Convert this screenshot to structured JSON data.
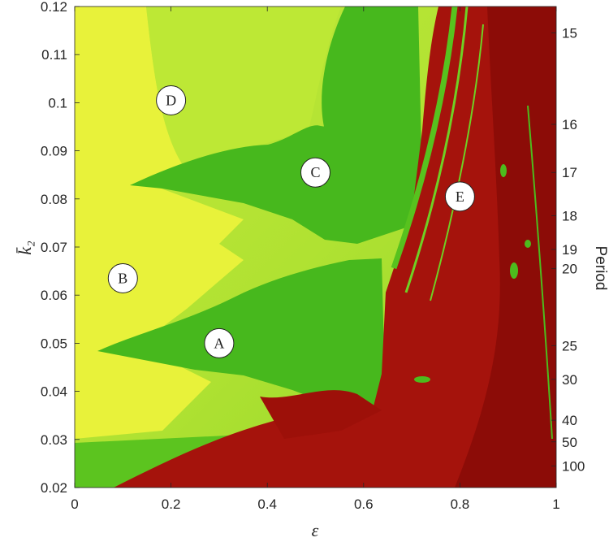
{
  "chart_data": {
    "type": "heatmap",
    "title": "",
    "xlabel": "ε",
    "ylabel": "k̄₂",
    "colorbar_label": "Period",
    "xlim": [
      0,
      1
    ],
    "ylim": [
      0.02,
      0.12
    ],
    "x_ticks": [
      0,
      0.2,
      0.4,
      0.6,
      0.8,
      1
    ],
    "x_tick_labels": [
      "0",
      "0.2",
      "0.4",
      "0.6",
      "0.8",
      "1"
    ],
    "y_ticks": [
      0.02,
      0.03,
      0.04,
      0.05,
      0.06,
      0.07,
      0.08,
      0.09,
      0.1,
      0.11,
      0.12
    ],
    "y_tick_labels": [
      "0.02",
      "0.03",
      "0.04",
      "0.05",
      "0.06",
      "0.07",
      "0.08",
      "0.09",
      "0.1",
      "0.11",
      "0.12"
    ],
    "period_ticks": [
      {
        "label": "15",
        "y": 0.1145
      },
      {
        "label": "16",
        "y": 0.0955
      },
      {
        "label": "17",
        "y": 0.0855
      },
      {
        "label": "18",
        "y": 0.0765
      },
      {
        "label": "19",
        "y": 0.0695
      },
      {
        "label": "20",
        "y": 0.0655
      },
      {
        "label": "25",
        "y": 0.0495
      },
      {
        "label": "30",
        "y": 0.0425
      },
      {
        "label": "40",
        "y": 0.034
      },
      {
        "label": "50",
        "y": 0.0295
      },
      {
        "label": "100",
        "y": 0.0245
      }
    ],
    "region_labels": [
      {
        "label": "A",
        "x": 0.3,
        "y": 0.05
      },
      {
        "label": "B",
        "x": 0.1,
        "y": 0.0635
      },
      {
        "label": "C",
        "x": 0.5,
        "y": 0.0855
      },
      {
        "label": "D",
        "x": 0.2,
        "y": 0.1005
      },
      {
        "label": "E",
        "x": 0.8,
        "y": 0.0805
      }
    ],
    "colors": {
      "yellow": "#e9f43a",
      "yellow_green": "#b6e52e",
      "green": "#46b81c",
      "red": "#a4120c",
      "dark_red": "#8d0d08"
    }
  }
}
